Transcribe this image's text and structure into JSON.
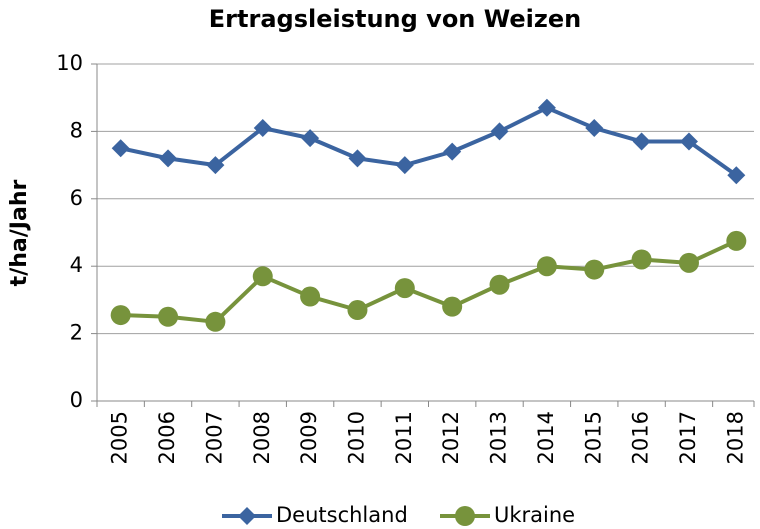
{
  "chart_data": {
    "type": "line",
    "title": "Ertragsleistung von Weizen",
    "y_label": "t/ha/Jahr",
    "categories": [
      "2005",
      "2006",
      "2007",
      "2008",
      "2009",
      "2010",
      "2011",
      "2012",
      "2013",
      "2014",
      "2015",
      "2016",
      "2017",
      "2018"
    ],
    "series": [
      {
        "name": "Deutschland",
        "color": "#3b64a0",
        "marker": "diamond",
        "values": [
          7.5,
          7.2,
          7.0,
          8.1,
          7.8,
          7.2,
          7.0,
          7.4,
          8.0,
          8.7,
          8.1,
          7.7,
          7.7,
          6.7
        ]
      },
      {
        "name": "Ukraine",
        "color": "#77933c",
        "marker": "circle",
        "values": [
          2.55,
          2.5,
          2.35,
          3.7,
          3.1,
          2.7,
          3.35,
          2.8,
          3.45,
          4.0,
          3.9,
          4.2,
          4.1,
          4.75
        ]
      }
    ],
    "ylim": [
      0,
      10
    ],
    "yticks": [
      0,
      2,
      4,
      6,
      8,
      10
    ],
    "grid": true,
    "legend": "bottom"
  }
}
